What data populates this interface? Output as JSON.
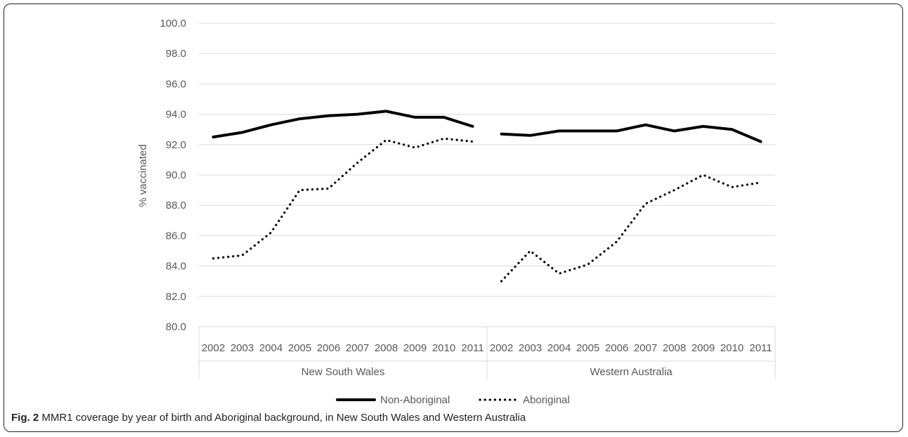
{
  "caption": {
    "label": "Fig. 2",
    "text": "MMR1 coverage by year of birth and Aboriginal background, in New South Wales and Western Australia"
  },
  "chart_data": {
    "type": "line",
    "title": "",
    "xlabel": "",
    "ylabel": "% vaccinated",
    "ylim": [
      80,
      100
    ],
    "yticks": [
      "80.0",
      "82.0",
      "84.0",
      "86.0",
      "88.0",
      "90.0",
      "92.0",
      "94.0",
      "96.0",
      "98.0",
      "100.0"
    ],
    "grid": true,
    "legend_position": "bottom",
    "groups": [
      {
        "name": "New South Wales",
        "categories": [
          "2002",
          "2003",
          "2004",
          "2005",
          "2006",
          "2007",
          "2008",
          "2009",
          "2010",
          "2011"
        ]
      },
      {
        "name": "Western Australia",
        "categories": [
          "2002",
          "2003",
          "2004",
          "2005",
          "2006",
          "2007",
          "2008",
          "2009",
          "2010",
          "2011"
        ]
      }
    ],
    "series": [
      {
        "name": "Non-Aboriginal",
        "style": "solid",
        "color": "#000000",
        "values": [
          [
            92.5,
            92.8,
            93.3,
            93.7,
            93.9,
            94.0,
            94.2,
            93.8,
            93.8,
            93.2
          ],
          [
            92.7,
            92.6,
            92.9,
            92.9,
            92.9,
            93.3,
            92.9,
            93.2,
            93.0,
            92.2
          ]
        ]
      },
      {
        "name": "Aboriginal",
        "style": "dotted",
        "color": "#000000",
        "values": [
          [
            84.5,
            84.7,
            86.2,
            89.0,
            89.1,
            90.8,
            92.3,
            91.8,
            92.4,
            92.2
          ],
          [
            83.0,
            85.0,
            83.5,
            84.1,
            85.6,
            88.1,
            89.0,
            90.0,
            89.2,
            89.5
          ]
        ]
      }
    ]
  }
}
